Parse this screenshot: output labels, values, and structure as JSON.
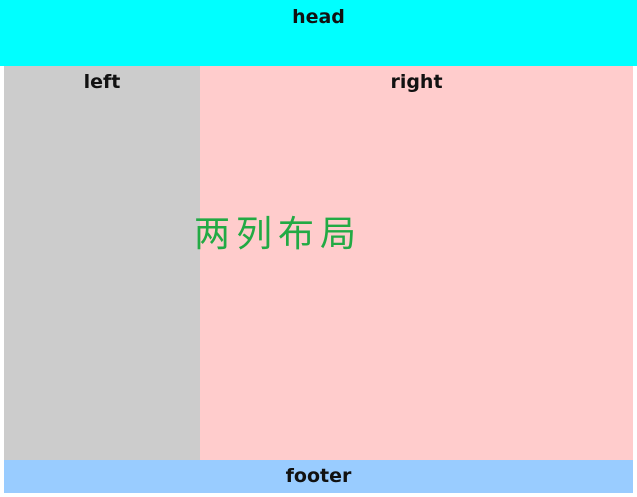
{
  "head": {
    "label": "head"
  },
  "left": {
    "label": "left"
  },
  "right": {
    "label": "right"
  },
  "footer": {
    "label": "footer"
  },
  "center_title": "两列布局",
  "colors": {
    "head_bg": "#00ffff",
    "left_bg": "#cccccc",
    "right_bg": "#ffcccc",
    "footer_bg": "#99ccff",
    "title_color": "#22aa44"
  }
}
